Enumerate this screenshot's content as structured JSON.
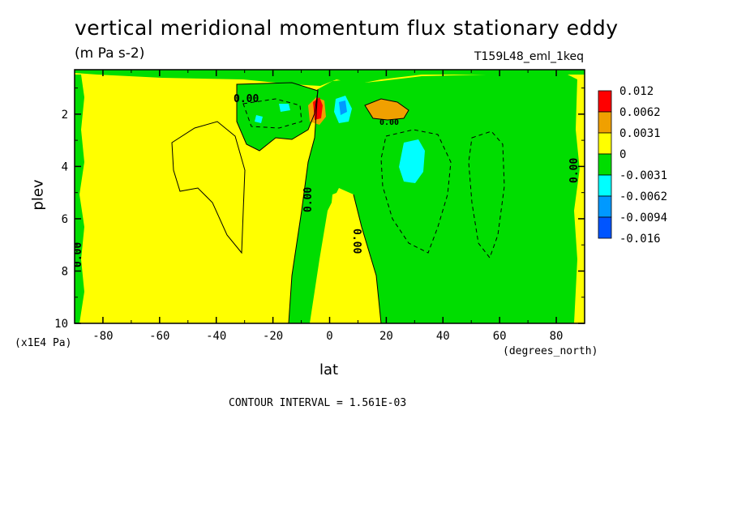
{
  "chart_data": {
    "type": "heatmap",
    "title": "vertical meridional momentum flux stationary eddy",
    "units": "(m Pa s-2)",
    "dataset": "T159L48_eml_1keq",
    "xlabel": "lat",
    "x_units": "(degrees_north)",
    "ylabel": "plev",
    "y_units": "(x1E4 Pa)",
    "xlim": [
      -90,
      90
    ],
    "ylim": [
      10,
      0.3
    ],
    "x_ticks": [
      -80,
      -60,
      -40,
      -20,
      0,
      20,
      40,
      60,
      80
    ],
    "x_tick_labels": [
      "-80",
      "-60",
      "-40",
      "-20",
      "0",
      "20",
      "40",
      "60",
      "80"
    ],
    "y_ticks": [
      2,
      4,
      6,
      8,
      10
    ],
    "y_tick_labels": [
      "2",
      "4",
      "6",
      "8",
      "10"
    ],
    "contour_interval": "CONTOUR INTERVAL = 1.561E-03",
    "contour_labels": [
      "0.00",
      "0.00",
      "0.00",
      "0.00",
      "0.00",
      "0.00",
      "0.00"
    ],
    "colorbar": {
      "labels": [
        "0.012",
        "0.0062",
        "0.0031",
        "0",
        "-0.0031",
        "-0.0062",
        "-0.0094",
        "-0.016"
      ],
      "colors": [
        "#ff0000",
        "#f0a000",
        "#ffff00",
        "#00dd00",
        "#00ffff",
        "#0099ff",
        "#0055ff"
      ]
    },
    "colors": {
      "yellow": "#ffff00",
      "green": "#00dd00",
      "orange": "#f0a000",
      "red": "#ff0000",
      "cyan": "#00ffff",
      "blue": "#0099ff"
    }
  }
}
